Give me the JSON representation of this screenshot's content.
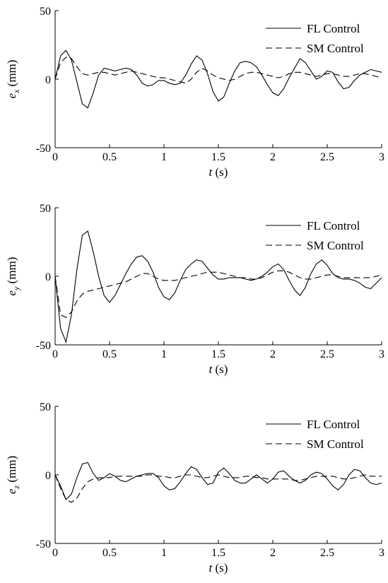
{
  "chart_data": [
    {
      "type": "line",
      "xlabel": "t (s)",
      "ylabel": "e_x (mm)",
      "ylabel_main": "e",
      "ylabel_sub": "x",
      "ylabel_unit": " (mm)",
      "xlabel_var": "t",
      "xlabel_unit": " (s)",
      "xlim": [
        0,
        3
      ],
      "ylim": [
        -50,
        50
      ],
      "xticks": [
        "0",
        "0.5",
        "1",
        "1.5",
        "2",
        "2.5",
        "3"
      ],
      "yticks": [
        "-50",
        "0",
        "50"
      ],
      "legend": "top-right",
      "grid": false,
      "x": [
        0,
        0.05,
        0.1,
        0.15,
        0.2,
        0.25,
        0.3,
        0.35,
        0.4,
        0.45,
        0.5,
        0.55,
        0.6,
        0.65,
        0.7,
        0.75,
        0.8,
        0.85,
        0.9,
        0.95,
        1.0,
        1.05,
        1.1,
        1.15,
        1.2,
        1.25,
        1.3,
        1.35,
        1.4,
        1.45,
        1.5,
        1.55,
        1.6,
        1.65,
        1.7,
        1.75,
        1.8,
        1.85,
        1.9,
        1.95,
        2.0,
        2.05,
        2.1,
        2.15,
        2.2,
        2.25,
        2.3,
        2.35,
        2.4,
        2.45,
        2.5,
        2.55,
        2.6,
        2.65,
        2.7,
        2.75,
        2.8,
        2.85,
        2.9,
        2.95,
        3.0
      ],
      "series": [
        {
          "name": "FL Control",
          "style": "solid",
          "values": [
            0,
            17,
            21,
            14,
            -2,
            -18,
            -21,
            -10,
            3,
            8,
            7,
            6,
            7,
            8,
            7,
            3,
            -3,
            -5,
            -4,
            -1,
            -1,
            -3,
            -4,
            -3,
            3,
            11,
            17,
            14,
            4,
            -9,
            -16,
            -13,
            -3,
            6,
            12,
            13,
            12,
            9,
            3,
            -4,
            -10,
            -12,
            -7,
            1,
            8,
            15,
            12,
            6,
            0,
            2,
            6,
            5,
            -2,
            -7,
            -6,
            -1,
            3,
            5,
            7,
            6,
            5
          ]
        },
        {
          "name": "SM Control",
          "style": "dashed",
          "values": [
            0,
            12,
            16,
            15,
            9,
            4,
            3,
            4,
            5,
            5,
            4,
            3,
            4,
            5,
            6,
            5,
            4,
            3,
            2,
            1,
            1,
            0,
            -1,
            -2,
            -3,
            0,
            5,
            8,
            6,
            3,
            1,
            0,
            -1,
            0,
            2,
            4,
            5,
            5,
            4,
            3,
            2,
            1,
            2,
            4,
            5,
            5,
            4,
            3,
            2,
            3,
            4,
            4,
            3,
            2,
            2,
            3,
            4,
            4,
            3,
            2,
            1
          ]
        }
      ]
    },
    {
      "type": "line",
      "xlabel": "t (s)",
      "ylabel": "e_y (mm)",
      "ylabel_main": "e",
      "ylabel_sub": "y",
      "ylabel_unit": " (mm)",
      "xlabel_var": "t",
      "xlabel_unit": " (s)",
      "xlim": [
        0,
        3
      ],
      "ylim": [
        -50,
        50
      ],
      "xticks": [
        "0",
        "0.5",
        "1",
        "1.5",
        "2",
        "2.5",
        "3"
      ],
      "yticks": [
        "-50",
        "0",
        "50"
      ],
      "legend": "top-right",
      "grid": false,
      "x": [
        0,
        0.05,
        0.1,
        0.15,
        0.2,
        0.25,
        0.3,
        0.35,
        0.4,
        0.45,
        0.5,
        0.55,
        0.6,
        0.65,
        0.7,
        0.75,
        0.8,
        0.85,
        0.9,
        0.95,
        1.0,
        1.05,
        1.1,
        1.15,
        1.2,
        1.25,
        1.3,
        1.35,
        1.4,
        1.45,
        1.5,
        1.55,
        1.6,
        1.65,
        1.7,
        1.75,
        1.8,
        1.85,
        1.9,
        1.95,
        2.0,
        2.05,
        2.1,
        2.15,
        2.2,
        2.25,
        2.3,
        2.35,
        2.4,
        2.45,
        2.5,
        2.55,
        2.6,
        2.65,
        2.7,
        2.75,
        2.8,
        2.85,
        2.9,
        2.95,
        3.0
      ],
      "series": [
        {
          "name": "FL Control",
          "style": "solid",
          "values": [
            0,
            -38,
            -48,
            -28,
            5,
            30,
            33,
            18,
            0,
            -14,
            -19,
            -14,
            -6,
            2,
            9,
            14,
            15,
            11,
            3,
            -8,
            -15,
            -17,
            -12,
            -3,
            5,
            9,
            12,
            11,
            6,
            1,
            -2,
            -2,
            -1,
            -1,
            -1,
            -2,
            -3,
            -2,
            0,
            3,
            7,
            9,
            5,
            -3,
            -10,
            -14,
            -8,
            2,
            9,
            12,
            8,
            2,
            -1,
            -2,
            -2,
            -3,
            -5,
            -8,
            -9,
            -5,
            -1
          ]
        },
        {
          "name": "SM Control",
          "style": "dashed",
          "values": [
            0,
            -28,
            -30,
            -26,
            -18,
            -13,
            -11,
            -10,
            -9,
            -8,
            -7,
            -6,
            -5,
            -4,
            -2,
            0,
            2,
            2,
            0,
            -2,
            -3,
            -3,
            -3,
            -2,
            -1,
            0,
            1,
            2,
            3,
            3,
            3,
            2,
            1,
            0,
            -1,
            -1,
            -2,
            -2,
            -1,
            1,
            3,
            4,
            4,
            3,
            1,
            -1,
            -2,
            -2,
            -1,
            0,
            1,
            1,
            0,
            -1,
            -1,
            -1,
            -1,
            -1,
            -1,
            0,
            1
          ]
        }
      ]
    },
    {
      "type": "line",
      "xlabel": "t (s)",
      "ylabel": "e_z (mm)",
      "ylabel_main": "e",
      "ylabel_sub": "z",
      "ylabel_unit": " (mm)",
      "xlabel_var": "t",
      "xlabel_unit": " (s)",
      "xlim": [
        0,
        3
      ],
      "ylim": [
        -50,
        50
      ],
      "xticks": [
        "0",
        "0.5",
        "1",
        "1.5",
        "2",
        "2.5",
        "3"
      ],
      "yticks": [
        "-50",
        "0",
        "50"
      ],
      "legend": "top-right",
      "grid": false,
      "x": [
        0,
        0.05,
        0.1,
        0.15,
        0.2,
        0.25,
        0.3,
        0.35,
        0.4,
        0.45,
        0.5,
        0.55,
        0.6,
        0.65,
        0.7,
        0.75,
        0.8,
        0.85,
        0.9,
        0.95,
        1.0,
        1.05,
        1.1,
        1.15,
        1.2,
        1.25,
        1.3,
        1.35,
        1.4,
        1.45,
        1.5,
        1.55,
        1.6,
        1.65,
        1.7,
        1.75,
        1.8,
        1.85,
        1.9,
        1.95,
        2.0,
        2.05,
        2.1,
        2.15,
        2.2,
        2.25,
        2.3,
        2.35,
        2.4,
        2.45,
        2.5,
        2.55,
        2.6,
        2.65,
        2.7,
        2.75,
        2.8,
        2.85,
        2.9,
        2.95,
        3.0
      ],
      "series": [
        {
          "name": "FL Control",
          "style": "solid",
          "values": [
            0,
            -8,
            -18,
            -14,
            -2,
            8,
            9,
            1,
            -4,
            -2,
            1,
            -1,
            -4,
            -5,
            -3,
            -1,
            0,
            1,
            1,
            -2,
            -8,
            -11,
            -10,
            -5,
            1,
            6,
            4,
            -2,
            -7,
            -6,
            2,
            5,
            1,
            -4,
            -6,
            -6,
            -3,
            0,
            -3,
            -6,
            -3,
            2,
            3,
            -1,
            -4,
            -6,
            -4,
            0,
            2,
            1,
            -3,
            -8,
            -11,
            -7,
            0,
            4,
            3,
            -2,
            -6,
            -7,
            -6
          ]
        },
        {
          "name": "SM Control",
          "style": "dashed",
          "values": [
            0,
            -10,
            -18,
            -20,
            -17,
            -10,
            -5,
            -3,
            -2,
            -2,
            -2,
            -1,
            -1,
            -1,
            -1,
            -1,
            -1,
            0,
            0,
            -1,
            -1,
            -2,
            -2,
            -1,
            0,
            0,
            -1,
            -2,
            -2,
            -1,
            0,
            -1,
            -2,
            -2,
            -2,
            -1,
            -1,
            -2,
            -2,
            -3,
            -3,
            -3,
            -3,
            -3,
            -4,
            -4,
            -3,
            -2,
            -1,
            -1,
            -1,
            -1,
            -2,
            -3,
            -3,
            -2,
            -1,
            0,
            -1,
            -1,
            -1
          ]
        }
      ]
    }
  ]
}
